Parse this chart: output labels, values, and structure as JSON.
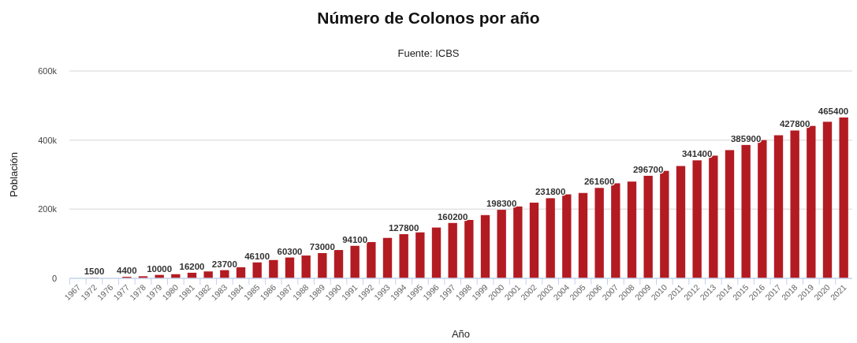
{
  "chart_data": {
    "type": "bar",
    "title": "Número de Colonos por año",
    "subtitle": "Fuente: ICBS",
    "xlabel": "Año",
    "ylabel": "Población",
    "categories": [
      "1967",
      "1972",
      "1976",
      "1977",
      "1978",
      "1979",
      "1980",
      "1981",
      "1982",
      "1983",
      "1984",
      "1985",
      "1986",
      "1987",
      "1988",
      "1989",
      "1990",
      "1991",
      "1992",
      "1993",
      "1994",
      "1995",
      "1996",
      "1997",
      "1998",
      "1999",
      "2000",
      "2001",
      "2002",
      "2003",
      "2004",
      "2005",
      "2006",
      "2007",
      "2008",
      "2009",
      "2010",
      "2011",
      "2012",
      "2013",
      "2014",
      "2015",
      "2016",
      "2017",
      "2018",
      "2019",
      "2020",
      "2021"
    ],
    "values": [
      null,
      1500,
      null,
      4400,
      6000,
      10000,
      12000,
      16200,
      20000,
      23700,
      32000,
      46100,
      53000,
      60300,
      66000,
      73000,
      82000,
      94100,
      105000,
      117000,
      127800,
      133000,
      147000,
      160200,
      169000,
      183000,
      198300,
      208000,
      219000,
      231800,
      243000,
      247000,
      261600,
      275000,
      280000,
      296700,
      311000,
      325000,
      341400,
      355000,
      371000,
      385900,
      400000,
      414000,
      427800,
      441000,
      453000,
      465400
    ],
    "value_labels": [
      null,
      "1500",
      null,
      "4400",
      null,
      "10000",
      null,
      "16200",
      null,
      "23700",
      null,
      "46100",
      null,
      "60300",
      null,
      "73000",
      null,
      "94100",
      null,
      null,
      "127800",
      null,
      null,
      "160200",
      null,
      null,
      "198300",
      null,
      null,
      "231800",
      null,
      null,
      "261600",
      null,
      null,
      "296700",
      null,
      null,
      "341400",
      null,
      null,
      "385900",
      null,
      null,
      "427800",
      null,
      null,
      "465400"
    ],
    "color": "#b31b22",
    "ylim": [
      0,
      600000
    ],
    "yticks": [
      {
        "value": 0,
        "label": "0"
      },
      {
        "value": 200000,
        "label": "200k"
      },
      {
        "value": 400000,
        "label": "400k"
      },
      {
        "value": 600000,
        "label": "600k"
      }
    ],
    "grid": "y"
  }
}
